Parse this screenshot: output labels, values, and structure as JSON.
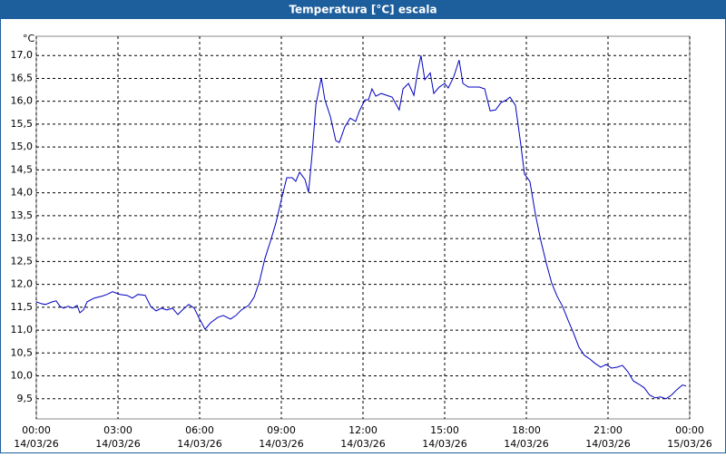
{
  "chart_data": {
    "type": "line",
    "title": "Temperatura [°C] escala",
    "y_label": "°C",
    "color": "#0000c0",
    "grid": true,
    "xlim": [
      0,
      24
    ],
    "ylim": [
      9.06,
      17.42
    ],
    "xticks": [
      {
        "value": 0,
        "label": "00:00"
      },
      {
        "value": 3,
        "label": "03:00"
      },
      {
        "value": 6,
        "label": "06:00"
      },
      {
        "value": 9,
        "label": "09:00"
      },
      {
        "value": 12,
        "label": "12:00"
      },
      {
        "value": 15,
        "label": "15:00"
      },
      {
        "value": 18,
        "label": "18:00"
      },
      {
        "value": 21,
        "label": "21:00"
      },
      {
        "value": 24,
        "label": "00:00"
      }
    ],
    "xtick_dates": [
      "14/03/26",
      "14/03/26",
      "14/03/26",
      "14/03/26",
      "14/03/26",
      "14/03/26",
      "14/03/26",
      "14/03/26",
      "15/03/26"
    ],
    "yticks": [
      {
        "value": 9.5,
        "label": "9,5"
      },
      {
        "value": 10,
        "label": "10,0"
      },
      {
        "value": 10.5,
        "label": "10,5"
      },
      {
        "value": 11,
        "label": "11,0"
      },
      {
        "value": 11.5,
        "label": "11,5"
      },
      {
        "value": 12,
        "label": "12,0"
      },
      {
        "value": 12.5,
        "label": "12,5"
      },
      {
        "value": 13,
        "label": "13,0"
      },
      {
        "value": 13.5,
        "label": "13,5"
      },
      {
        "value": 14,
        "label": "14,0"
      },
      {
        "value": 14.5,
        "label": "14,5"
      },
      {
        "value": 15,
        "label": "15,0"
      },
      {
        "value": 15.5,
        "label": "15,5"
      },
      {
        "value": 16,
        "label": "16,0"
      },
      {
        "value": 16.5,
        "label": "16,5"
      },
      {
        "value": 17,
        "label": "17,0"
      }
    ],
    "x": [
      0,
      0.17,
      0.33,
      0.6,
      0.73,
      0.87,
      1,
      1.17,
      1.33,
      1.5,
      1.6,
      1.73,
      1.87,
      2.13,
      2.4,
      2.6,
      2.8,
      3.07,
      3.33,
      3.53,
      3.73,
      4,
      4.2,
      4.4,
      4.6,
      4.8,
      5,
      5.2,
      5.4,
      5.6,
      5.8,
      6,
      6.2,
      6.4,
      6.67,
      6.87,
      7.13,
      7.33,
      7.53,
      7.8,
      8,
      8.2,
      8.4,
      8.6,
      8.8,
      9,
      9.2,
      9.4,
      9.53,
      9.67,
      9.87,
      10,
      10.13,
      10.27,
      10.47,
      10.6,
      10.8,
      11,
      11.13,
      11.33,
      11.53,
      11.73,
      11.87,
      12.07,
      12.2,
      12.33,
      12.47,
      12.67,
      12.87,
      13.07,
      13.33,
      13.47,
      13.67,
      13.87,
      14,
      14.13,
      14.27,
      14.47,
      14.6,
      14.8,
      15,
      15.13,
      15.33,
      15.53,
      15.67,
      15.87,
      16.07,
      16.27,
      16.47,
      16.67,
      16.87,
      17.07,
      17.27,
      17.4,
      17.6,
      17.8,
      17.93,
      18.13,
      18.33,
      18.53,
      18.73,
      18.93,
      19.13,
      19.33,
      19.53,
      19.73,
      19.93,
      20.13,
      20.33,
      20.53,
      20.73,
      20.93,
      21.13,
      21.33,
      21.53,
      21.73,
      21.93,
      22.13,
      22.33,
      22.53,
      22.73,
      22.93,
      23.13,
      23.33,
      23.53,
      23.73,
      23.87
    ],
    "values": [
      11.62,
      11.58,
      11.56,
      11.62,
      11.64,
      11.52,
      11.48,
      11.52,
      11.48,
      11.54,
      11.38,
      11.44,
      11.62,
      11.7,
      11.74,
      11.78,
      11.84,
      11.78,
      11.76,
      11.7,
      11.78,
      11.76,
      11.52,
      11.42,
      11.48,
      11.44,
      11.48,
      11.34,
      11.46,
      11.56,
      11.48,
      11.24,
      11.02,
      11.16,
      11.28,
      11.32,
      11.24,
      11.32,
      11.44,
      11.54,
      11.72,
      12.07,
      12.57,
      12.94,
      13.34,
      13.85,
      14.33,
      14.33,
      14.25,
      14.45,
      14.29,
      14.01,
      14.84,
      15.93,
      16.51,
      16.03,
      15.67,
      15.14,
      15.1,
      15.44,
      15.63,
      15.56,
      15.79,
      16.03,
      16.03,
      16.27,
      16.11,
      16.17,
      16.13,
      16.09,
      15.81,
      16.27,
      16.39,
      16.13,
      16.62,
      17,
      16.47,
      16.62,
      16.17,
      16.31,
      16.39,
      16.29,
      16.53,
      16.9,
      16.39,
      16.31,
      16.31,
      16.31,
      16.27,
      15.79,
      15.81,
      15.97,
      16.03,
      16.09,
      15.91,
      15.04,
      14.41,
      14.25,
      13.54,
      12.96,
      12.47,
      12.03,
      11.74,
      11.52,
      11.22,
      10.94,
      10.63,
      10.45,
      10.37,
      10.27,
      10.19,
      10.25,
      10.17,
      10.19,
      10.23,
      10.09,
      9.89,
      9.82,
      9.74,
      9.58,
      9.52,
      9.54,
      9.5,
      9.58,
      9.7,
      9.8,
      9.78
    ]
  }
}
